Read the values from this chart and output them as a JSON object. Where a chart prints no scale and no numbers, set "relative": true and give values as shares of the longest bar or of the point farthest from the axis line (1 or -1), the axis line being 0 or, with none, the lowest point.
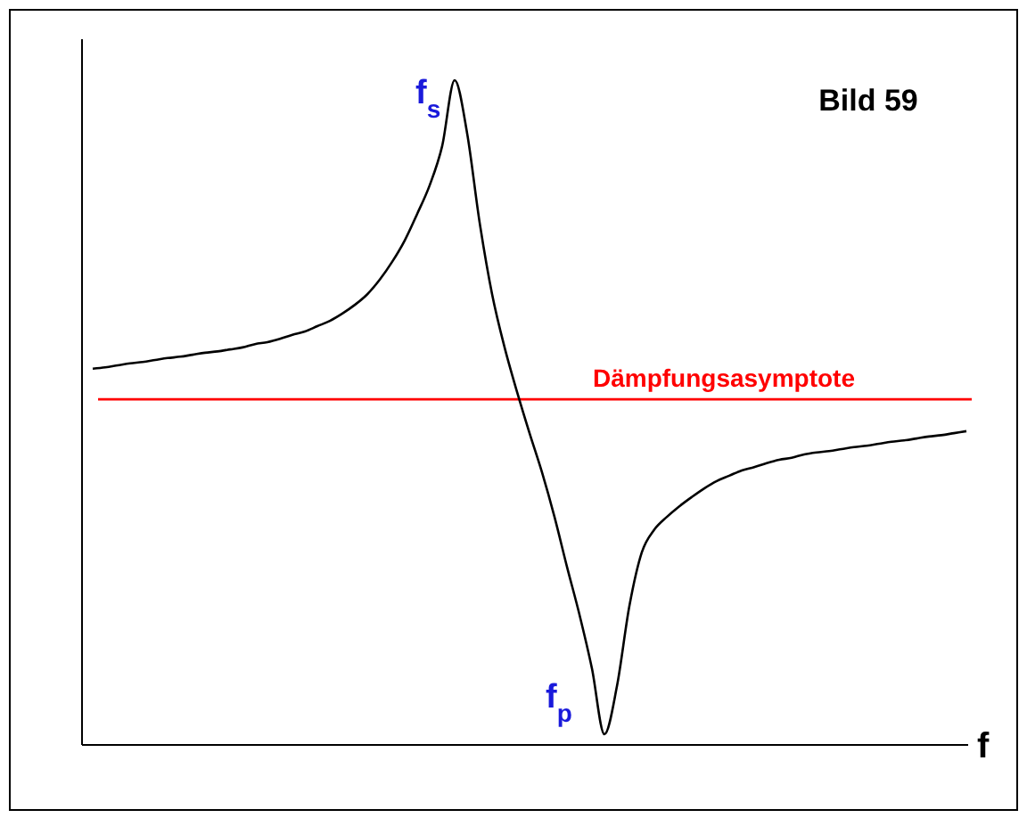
{
  "chart_data": {
    "type": "line",
    "title": "Bild 59",
    "xlabel": "f",
    "relative": true,
    "categories": [
      null,
      null,
      null,
      null,
      null,
      null,
      null,
      null,
      null,
      null,
      null,
      null,
      null,
      null,
      null,
      null,
      null,
      null,
      null,
      null,
      null,
      null,
      null,
      null,
      null,
      null,
      null,
      null,
      null,
      null,
      null,
      null,
      null,
      null,
      null,
      null,
      null,
      null,
      null,
      null,
      null,
      null,
      null,
      null,
      null,
      null,
      null,
      null,
      null,
      null,
      null,
      null,
      null,
      null,
      null,
      null,
      null,
      null,
      null,
      null,
      null,
      null,
      null,
      null,
      null,
      null,
      null,
      null,
      null,
      null,
      null
    ],
    "series": [
      {
        "color": "#000000",
        "values": [
          0.566,
          0.568,
          0.571,
          0.574,
          0.576,
          0.579,
          0.582,
          0.584,
          0.587,
          0.59,
          0.592,
          0.595,
          0.598,
          0.603,
          0.606,
          0.611,
          0.617,
          0.622,
          0.63,
          0.638,
          0.649,
          0.662,
          0.678,
          0.7,
          0.727,
          0.759,
          0.799,
          0.842,
          0.901,
          1,
          0.92,
          0.786,
          0.678,
          0.598,
          0.531,
          0.469,
          0.41,
          0.343,
          0.268,
          0.196,
          0.115,
          0.016,
          0.088,
          0.209,
          0.29,
          0.324,
          0.343,
          0.359,
          0.373,
          0.386,
          0.397,
          0.405,
          0.413,
          0.418,
          0.424,
          0.429,
          0.432,
          0.437,
          0.44,
          0.442,
          0.445,
          0.448,
          0.45,
          0.453,
          0.456,
          0.458,
          0.461,
          0.464,
          0.466,
          0.469,
          0.472
        ]
      }
    ],
    "ref_lines": [
      {
        "axis": "y",
        "value": 0.52,
        "label": "Dämpfungsasymptote",
        "color": "#ff0000"
      }
    ],
    "annotations": [
      "f$_{s}$",
      "f$_{p}$"
    ],
    "marker": "none",
    "line_style": "solid"
  }
}
